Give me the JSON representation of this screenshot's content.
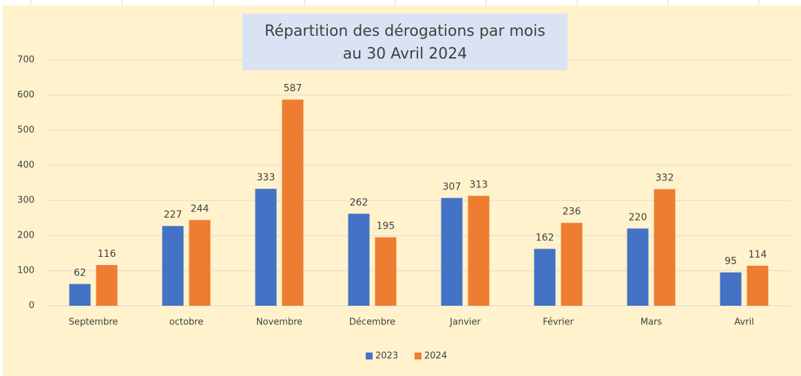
{
  "chart_data": {
    "type": "bar",
    "title": [
      "Répartition des dérogations par mois",
      "au 30 Avril 2024"
    ],
    "categories": [
      "Septembre",
      "octobre",
      "Novembre",
      "Décembre",
      "Janvier",
      "Février",
      "Mars",
      "Avril"
    ],
    "series": [
      {
        "name": "2023",
        "color": "#4472c4",
        "values": [
          62,
          227,
          333,
          262,
          307,
          162,
          220,
          95
        ]
      },
      {
        "name": "2024",
        "color": "#ed7d31",
        "values": [
          116,
          244,
          587,
          195,
          313,
          236,
          332,
          114
        ]
      }
    ],
    "ylim": [
      0,
      700
    ],
    "yticks": [
      0,
      100,
      200,
      300,
      400,
      500,
      600,
      700
    ],
    "grid": true,
    "legend": "bottom"
  }
}
